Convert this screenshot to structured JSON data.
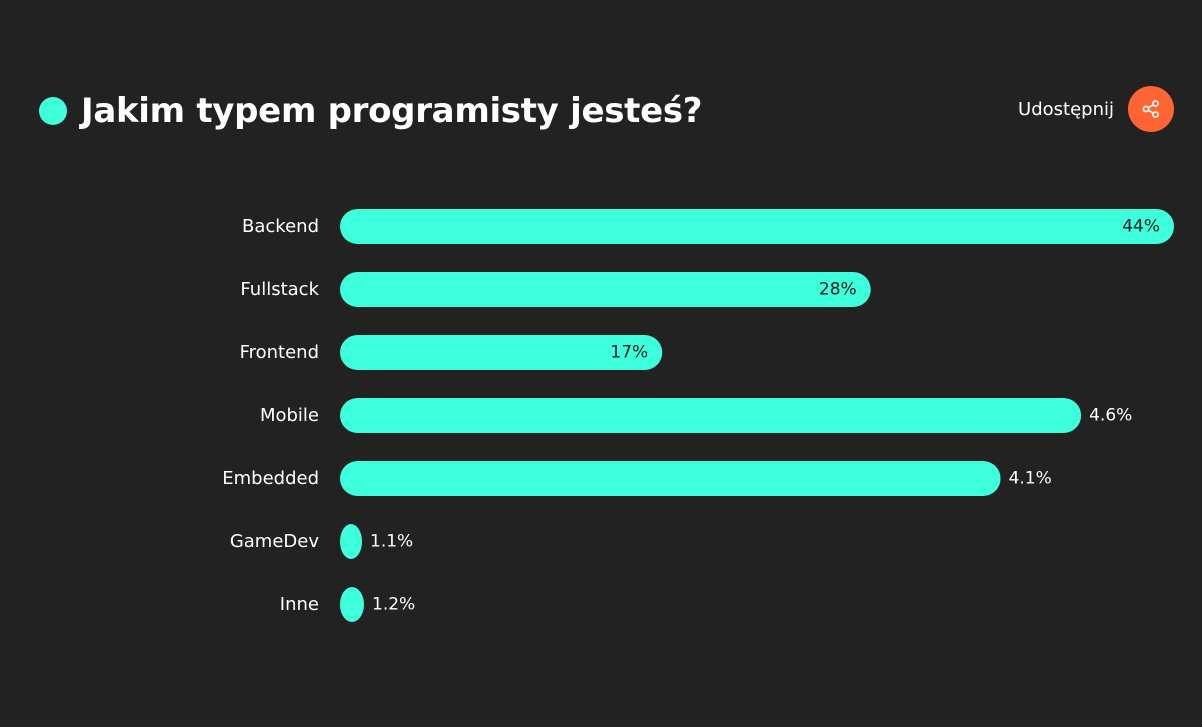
{
  "header": {
    "title": "Jakim typem programisty jesteś?",
    "share_label": "Udostępnij",
    "share_icon": "share-icon"
  },
  "colors": {
    "background": "#222222",
    "accent": "#3dffdc",
    "share_button": "#ff6533",
    "text": "#ffffff",
    "label_inside": "#1a1a1a"
  },
  "chart_data": {
    "type": "bar",
    "orientation": "horizontal",
    "categories": [
      "Backend",
      "Fullstack",
      "Frontend",
      "Mobile",
      "Embedded",
      "GameDev",
      "Inne"
    ],
    "values": [
      44,
      28,
      17,
      4.6,
      4.1,
      1.1,
      1.2
    ],
    "value_labels": [
      "44%",
      "28%",
      "17%",
      "4.6%",
      "4.1%",
      "1.1%",
      "1.2%"
    ],
    "unit": "%",
    "title": "Jakim typem programisty jesteś?",
    "xlabel": "",
    "ylabel": "",
    "xlim": [
      0,
      44
    ],
    "grid": false,
    "legend": "none"
  }
}
